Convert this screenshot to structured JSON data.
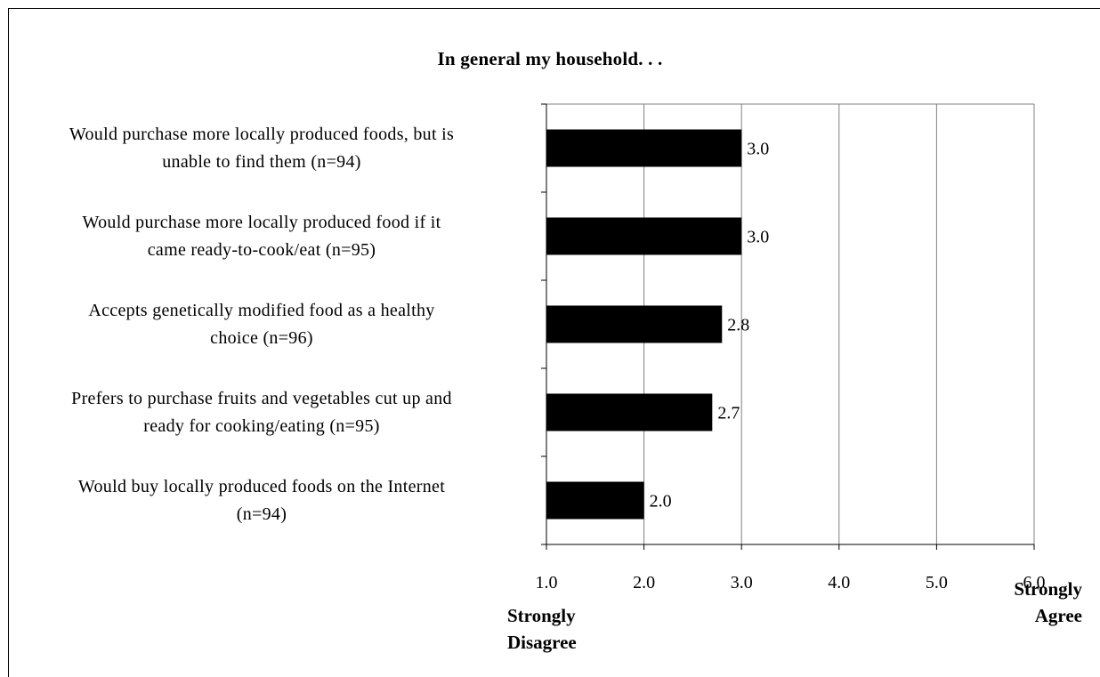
{
  "chart_data": {
    "type": "bar",
    "orientation": "horizontal",
    "title": "In general my household. . .",
    "categories": [
      "Would purchase more locally produced foods, but is unable to find them (n=94)",
      "Would purchase more locally produced food if it came ready-to-cook/eat (n=95)",
      "Accepts genetically modified food as a healthy choice (n=96)",
      "Prefers to purchase fruits and vegetables cut up and ready for cooking/eating (n=95)",
      "Would buy locally produced foods on the Internet (n=94)"
    ],
    "category_lines": [
      [
        "Would purchase more locally produced foods, but is",
        "unable to find them (n=94)"
      ],
      [
        "Would purchase more locally produced food if it",
        "came ready-to-cook/eat (n=95)"
      ],
      [
        "Accepts genetically modified food as a healthy",
        "choice (n=96)"
      ],
      [
        "Prefers to purchase fruits and vegetables cut up and",
        "ready for cooking/eating (n=95)"
      ],
      [
        "Would buy locally produced foods on the Internet",
        "(n=94)"
      ]
    ],
    "values": [
      3.0,
      3.0,
      2.8,
      2.7,
      2.0
    ],
    "value_labels": [
      "3.0",
      "3.0",
      "2.8",
      "2.7",
      "2.0"
    ],
    "xlim": [
      1.0,
      6.0
    ],
    "xticks": [
      1.0,
      2.0,
      3.0,
      4.0,
      5.0,
      6.0
    ],
    "xtick_labels": [
      "1.0",
      "2.0",
      "3.0",
      "4.0",
      "5.0",
      "6.0"
    ],
    "anchor_left": [
      "Strongly",
      "Disagree"
    ],
    "anchor_right": [
      "Strongly",
      "Agree"
    ],
    "grid": "vertical",
    "colors": {
      "bar": "#000000",
      "grid": "#808080",
      "plot_border": "#808080",
      "axis": "#000000"
    }
  }
}
